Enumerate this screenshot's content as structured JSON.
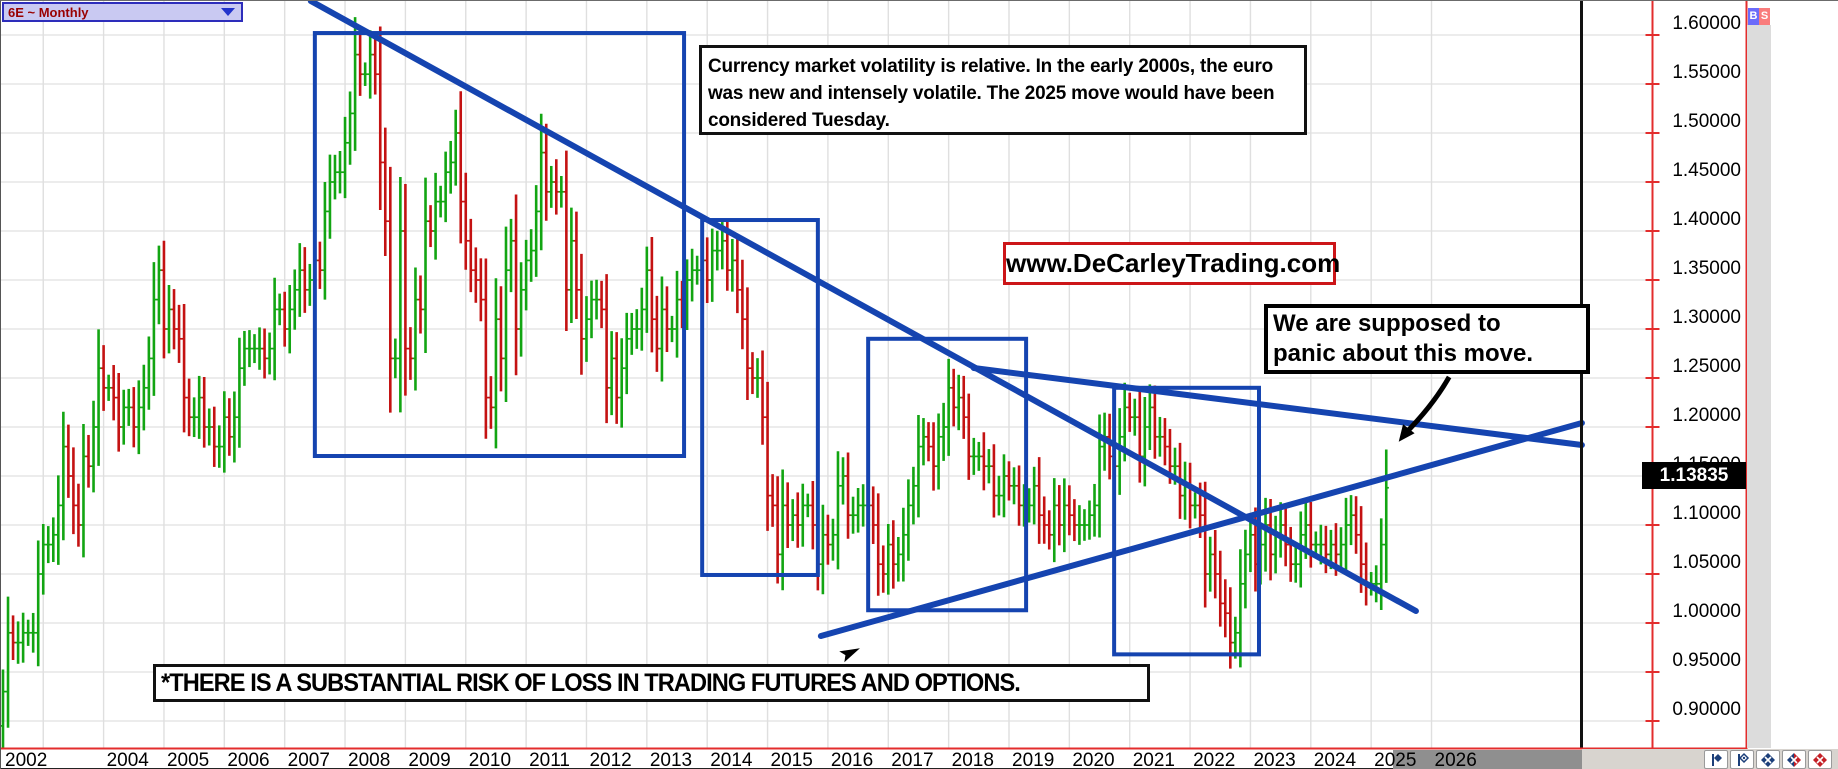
{
  "window_chrome": {
    "symbol": "6E ~ Monthly"
  },
  "dom_panel": {
    "buy": "B",
    "sell": "S"
  },
  "price_axis": {
    "labels": [
      "1.60000",
      "1.55000",
      "1.50000",
      "1.45000",
      "1.40000",
      "1.35000",
      "1.30000",
      "1.25000",
      "1.20000",
      "1.15000",
      "1.10000",
      "1.05000",
      "1.00000",
      "0.95000",
      "0.90000"
    ],
    "last_price": "1.13835"
  },
  "time_axis": {
    "first_label": "2002",
    "year_labels": [
      "2002",
      "2004",
      "2005",
      "2006",
      "2007",
      "2008",
      "2009",
      "2010",
      "2011",
      "2012",
      "2013",
      "2014",
      "2015",
      "2016",
      "2017",
      "2018",
      "2019",
      "2020",
      "2021",
      "2022",
      "2023",
      "2024",
      "2025",
      "2026"
    ]
  },
  "annotations": {
    "commentary": {
      "line1": "Currency market volatility is relative. In the early 2000s, the euro",
      "line2": "was new and intensely volatile. The 2025 move would have been",
      "line3": "considered Tuesday."
    },
    "website": "www.DeCarleyTrading.com",
    "panic": {
      "line1": "We are supposed to",
      "line2": " panic about this move."
    },
    "disclaimer": "*THERE IS A SUBSTANTIAL RISK OF LOSS IN TRADING FUTURES AND OPTIONS."
  },
  "colors": {
    "up_bar": "#12A512",
    "down_bar": "#C41212",
    "annotation_blue": "#1544B0",
    "axis_red": "#e32d2d",
    "grid": "#e6e6e6",
    "vgrid": "#dfdfdf",
    "future_strip": "#8f8f8f",
    "badge_bg": "#000000",
    "buy_bg": "#6b6bfa",
    "sell_bg": "#f97c7c",
    "website_border": "#cc1518",
    "navy_icon": "#1c3f7a",
    "red_icon": "#c42027"
  },
  "chart_data": {
    "type": "candlestick",
    "symbol": "6E ~ Monthly",
    "timeframe": "monthly",
    "start_month": "2002-05",
    "end_month": "2025-04",
    "first_open": 0.895,
    "last_price": 1.13835,
    "ylim": [
      0.88,
      1.62
    ],
    "grid_step": 0.05,
    "x_years_labeled": [
      2002,
      2004,
      2005,
      2006,
      2007,
      2008,
      2009,
      2010,
      2011,
      2012,
      2013,
      2014,
      2015,
      2016,
      2017,
      2018,
      2019,
      2020,
      2021,
      2022,
      2023,
      2024,
      2025,
      2026
    ],
    "monthly_closes": [
      0.93,
      0.99,
      0.98,
      0.98,
      0.99,
      0.99,
      0.99,
      1.05,
      1.08,
      1.08,
      1.09,
      1.12,
      1.18,
      1.15,
      1.12,
      1.1,
      1.17,
      1.16,
      1.2,
      1.26,
      1.24,
      1.24,
      1.23,
      1.2,
      1.22,
      1.22,
      1.2,
      1.22,
      1.24,
      1.27,
      1.33,
      1.36,
      1.3,
      1.32,
      1.3,
      1.29,
      1.23,
      1.21,
      1.21,
      1.23,
      1.2,
      1.2,
      1.18,
      1.18,
      1.21,
      1.19,
      1.21,
      1.26,
      1.28,
      1.28,
      1.28,
      1.28,
      1.27,
      1.28,
      1.32,
      1.32,
      1.3,
      1.32,
      1.34,
      1.36,
      1.34,
      1.35,
      1.37,
      1.36,
      1.42,
      1.45,
      1.46,
      1.46,
      1.49,
      1.52,
      1.58,
      1.56,
      1.56,
      1.58,
      1.56,
      1.47,
      1.41,
      1.27,
      1.27,
      1.4,
      1.28,
      1.27,
      1.33,
      1.32,
      1.41,
      1.4,
      1.43,
      1.43,
      1.46,
      1.47,
      1.5,
      1.43,
      1.39,
      1.36,
      1.35,
      1.33,
      1.23,
      1.22,
      1.31,
      1.27,
      1.36,
      1.39,
      1.3,
      1.34,
      1.37,
      1.38,
      1.42,
      1.48,
      1.44,
      1.45,
      1.44,
      1.44,
      1.34,
      1.39,
      1.34,
      1.29,
      1.31,
      1.33,
      1.33,
      1.32,
      1.24,
      1.27,
      1.23,
      1.26,
      1.29,
      1.3,
      1.3,
      1.32,
      1.36,
      1.31,
      1.28,
      1.32,
      1.3,
      1.3,
      1.33,
      1.32,
      1.35,
      1.36,
      1.36,
      1.37,
      1.35,
      1.38,
      1.38,
      1.39,
      1.36,
      1.37,
      1.34,
      1.31,
      1.26,
      1.25,
      1.25,
      1.21,
      1.13,
      1.12,
      1.07,
      1.12,
      1.1,
      1.11,
      1.1,
      1.12,
      1.12,
      1.1,
      1.06,
      1.09,
      1.08,
      1.09,
      1.14,
      1.15,
      1.11,
      1.11,
      1.12,
      1.12,
      1.12,
      1.1,
      1.06,
      1.05,
      1.08,
      1.06,
      1.07,
      1.09,
      1.12,
      1.14,
      1.18,
      1.19,
      1.18,
      1.16,
      1.19,
      1.2,
      1.24,
      1.22,
      1.23,
      1.21,
      1.17,
      1.17,
      1.17,
      1.16,
      1.16,
      1.13,
      1.13,
      1.15,
      1.14,
      1.14,
      1.12,
      1.12,
      1.12,
      1.14,
      1.11,
      1.1,
      1.09,
      1.12,
      1.1,
      1.12,
      1.11,
      1.1,
      1.1,
      1.1,
      1.11,
      1.12,
      1.18,
      1.19,
      1.17,
      1.16,
      1.19,
      1.22,
      1.21,
      1.21,
      1.17,
      1.2,
      1.22,
      1.19,
      1.19,
      1.18,
      1.16,
      1.16,
      1.13,
      1.14,
      1.12,
      1.12,
      1.11,
      1.05,
      1.07,
      1.05,
      1.02,
      1.01,
      0.98,
      0.99,
      1.04,
      1.07,
      1.09,
      1.06,
      1.08,
      1.1,
      1.07,
      1.09,
      1.1,
      1.08,
      1.06,
      1.06,
      1.09,
      1.1,
      1.08,
      1.08,
      1.08,
      1.07,
      1.08,
      1.07,
      1.08,
      1.1,
      1.11,
      1.09,
      1.06,
      1.04,
      1.04,
      1.04,
      1.08,
      1.138
    ],
    "trendlines": [
      {
        "name": "long-term-downtrend",
        "from": [
          61.2,
          1.6347
        ],
        "to": [
          280.9,
          1.0122
        ]
      },
      {
        "name": "shallow-downtrend",
        "from": [
          193.0,
          1.2602
        ],
        "to": [
          313.9,
          1.1816
        ]
      },
      {
        "name": "ascending-support",
        "from": [
          162.6,
          0.9867
        ],
        "to": [
          313.9,
          1.2041
        ]
      }
    ],
    "highlight_boxes": [
      {
        "name": "volatility-2007-2013",
        "from": [
          62.0,
          1.602
        ],
        "to": [
          135.4,
          1.1704
        ]
      },
      {
        "name": "decline-2014-2015",
        "from": [
          139.0,
          1.4112
        ],
        "to": [
          162.0,
          1.049
        ]
      },
      {
        "name": "range-2017-2019",
        "from": [
          172.0,
          1.29
        ],
        "to": [
          203.4,
          1.013
        ]
      },
      {
        "name": "decline-2021-2022",
        "from": [
          220.9,
          1.24
        ],
        "to": [
          249.7,
          0.968
        ]
      }
    ],
    "arrows": [
      {
        "name": "panic-arrow",
        "from": [
          287.5,
          1.251
        ],
        "to": [
          278.7,
          1.193
        ]
      },
      {
        "name": "small-arrow-marker",
        "at": [
          168.2,
          0.969
        ],
        "angle": -25
      }
    ]
  },
  "bottom_toolbar": {
    "buttons": [
      {
        "name": "flag-diamond-solid",
        "glyph": "flag_solid"
      },
      {
        "name": "flag-diamond-outline",
        "glyph": "flag_outline"
      },
      {
        "name": "diamond-navy",
        "glyph": "dx_navy"
      },
      {
        "name": "diamond-split",
        "glyph": "dx_split"
      },
      {
        "name": "diamond-red",
        "glyph": "dx_red"
      }
    ]
  }
}
